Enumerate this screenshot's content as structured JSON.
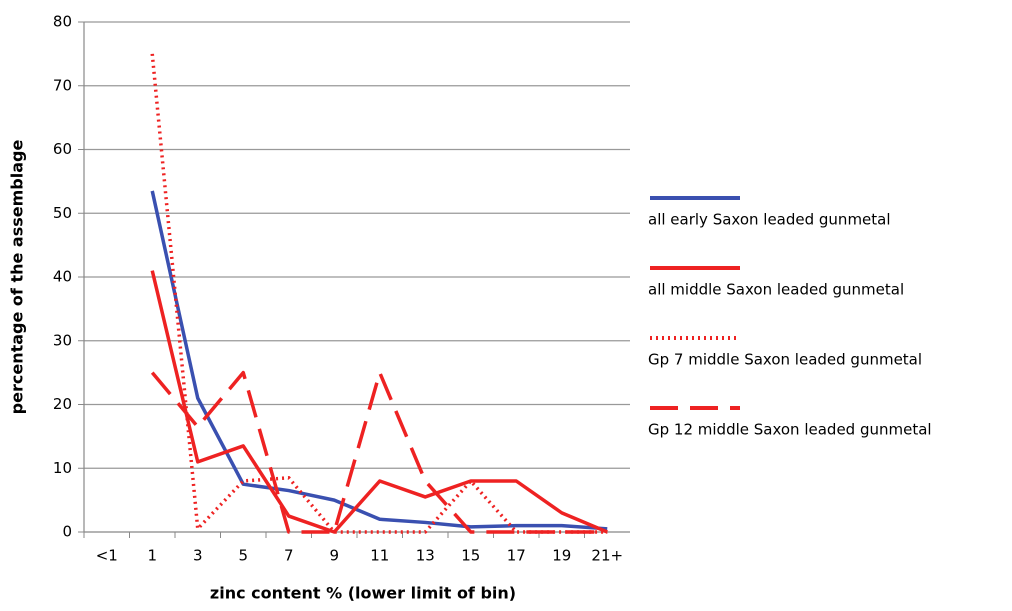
{
  "chart_data": {
    "type": "line",
    "x_label": "zinc content % (lower limit of bin)",
    "y_label": "percentage of the assemblage",
    "categories": [
      "<1",
      "1",
      "3",
      "5",
      "7",
      "9",
      "11",
      "13",
      "15",
      "17",
      "19",
      "21+"
    ],
    "series": [
      {
        "name": "all early Saxon leaded gunmetal",
        "color": "#3a50b0",
        "dash": "solid",
        "values": [
          null,
          53.5,
          21,
          7.5,
          6.5,
          5,
          2,
          1.5,
          0.8,
          1,
          1,
          0.5
        ]
      },
      {
        "name": "all middle Saxon leaded gunmetal",
        "color": "#ee2222",
        "dash": "solid",
        "values": [
          null,
          41,
          11,
          13.5,
          2.5,
          0,
          8,
          5.5,
          8,
          8,
          3,
          0
        ]
      },
      {
        "name": "Gp 7 middle Saxon leaded gunmetal",
        "color": "#ee2222",
        "dash": "dotted",
        "values": [
          null,
          75,
          0.5,
          8,
          8.5,
          0,
          0,
          0,
          8,
          0,
          0,
          0
        ]
      },
      {
        "name": "Gp 12 middle Saxon leaded gunmetal",
        "color": "#ee2222",
        "dash": "dashed",
        "values": [
          null,
          25,
          16.5,
          25,
          0,
          0,
          25,
          8,
          0,
          0,
          0,
          0
        ]
      }
    ],
    "ylim": [
      0,
      80
    ],
    "yticks": [
      0,
      10,
      20,
      30,
      40,
      50,
      60,
      70,
      80
    ],
    "grid": true,
    "legend": "right"
  }
}
